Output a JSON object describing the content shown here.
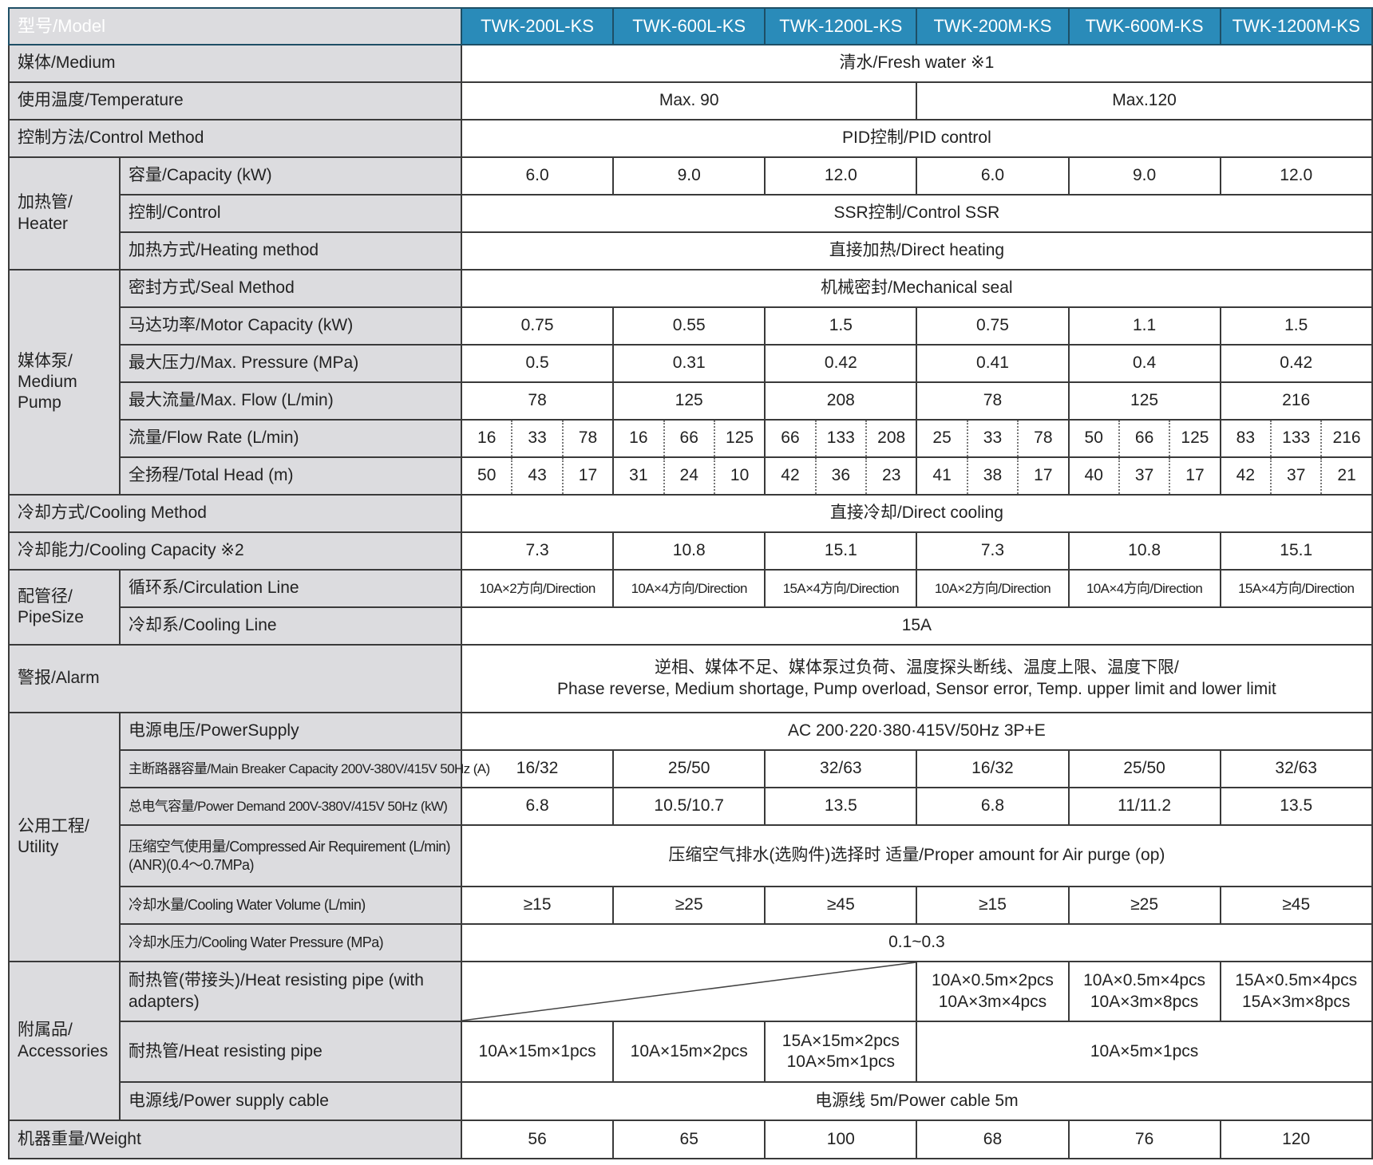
{
  "header": {
    "label": "型号/Model",
    "models": [
      "TWK-200L-KS",
      "TWK-600L-KS",
      "TWK-1200L-KS",
      "TWK-200M-KS",
      "TWK-600M-KS",
      "TWK-1200M-KS"
    ]
  },
  "colors": {
    "header_bg": "#2a8bb9",
    "label_bg": "#dcdcdf",
    "border": "#3a3a3a"
  },
  "rows": [
    {
      "id": "medium",
      "label": "媒体/Medium",
      "cells": [
        "清水/Fresh water ※1"
      ]
    },
    {
      "id": "temperature",
      "label": "使用温度/Temperature",
      "cells": [
        "Max. 90",
        "Max.120"
      ]
    },
    {
      "id": "control-method",
      "label": "控制方法/Control Method",
      "cells": [
        "PID控制/PID control"
      ]
    },
    {
      "id": "heater-capacity",
      "group": "加热管/ Heater",
      "label": "容量/Capacity (kW)",
      "cells": [
        "6.0",
        "9.0",
        "12.0",
        "6.0",
        "9.0",
        "12.0"
      ]
    },
    {
      "id": "heater-control",
      "label": "控制/Control",
      "cells": [
        "SSR控制/Control  SSR"
      ]
    },
    {
      "id": "heating-method",
      "label": "加热方式/Heating method",
      "cells": [
        "直接加热/Direct heating"
      ]
    },
    {
      "id": "seal-method",
      "group": "媒体泵/ Medium Pump",
      "label": "密封方式/Seal Method",
      "cells": [
        "机械密封/Mechanical seal"
      ]
    },
    {
      "id": "motor-capacity",
      "label": "马达功率/Motor Capacity  (kW)",
      "cells": [
        "0.75",
        "0.55",
        "1.5",
        "0.75",
        "1.1",
        "1.5"
      ]
    },
    {
      "id": "max-pressure",
      "label": "最大压力/Max. Pressure (MPa)",
      "cells": [
        "0.5",
        "0.31",
        "0.42",
        "0.41",
        "0.4",
        "0.42"
      ]
    },
    {
      "id": "max-flow",
      "label": "最大流量/Max. Flow (L/min)",
      "cells": [
        "78",
        "125",
        "208",
        "78",
        "125",
        "216"
      ]
    },
    {
      "id": "flow-rate",
      "label": "流量/Flow Rate (L/min)",
      "cells": [
        "16",
        "33",
        "78",
        "16",
        "66",
        "125",
        "66",
        "133",
        "208",
        "25",
        "33",
        "78",
        "50",
        "66",
        "125",
        "83",
        "133",
        "216"
      ]
    },
    {
      "id": "total-head",
      "label": "全扬程/Total Head  (m)",
      "cells": [
        "50",
        "43",
        "17",
        "31",
        "24",
        "10",
        "42",
        "36",
        "23",
        "41",
        "38",
        "17",
        "40",
        "37",
        "17",
        "42",
        "37",
        "21"
      ]
    },
    {
      "id": "cooling-method",
      "label": "冷却方式/Cooling Method",
      "cells": [
        "直接冷却/Direct cooling"
      ]
    },
    {
      "id": "cooling-capacity",
      "label": "冷却能力/Cooling Capacity ※2",
      "cells": [
        "7.3",
        "10.8",
        "15.1",
        "7.3",
        "10.8",
        "15.1"
      ]
    },
    {
      "id": "circulation-line",
      "group": "配管径/ PipeSize",
      "label": "循环系/Circulation Line",
      "cells": [
        "10A×2方向/Direction",
        "10A×4方向/Direction",
        "15A×4方向/Direction",
        "10A×2方向/Direction",
        "10A×4方向/Direction",
        "15A×4方向/Direction"
      ]
    },
    {
      "id": "cooling-line",
      "label": "冷却系/Cooling Line",
      "cells": [
        "15A"
      ]
    },
    {
      "id": "alarm",
      "label": "警报/Alarm",
      "cells": [
        "逆相、媒体不足、媒体泵过负荷、温度探头断线、温度上限、温度下限/ Phase reverse, Medium shortage, Pump overload, Sensor error, Temp. upper limit and lower limit"
      ]
    },
    {
      "id": "power-supply",
      "group": "公用工程/ Utility",
      "label": "电源电压/PowerSupply",
      "cells": [
        "AC 200·220·380·415V/50Hz 3P+E"
      ]
    },
    {
      "id": "main-breaker",
      "label": "主断路器容量/Main Breaker Capacity 200V-380V/415V 50Hz (A)",
      "cells": [
        "16/32",
        "25/50",
        "32/63",
        "16/32",
        "25/50",
        "32/63"
      ]
    },
    {
      "id": "power-demand",
      "label": "总电气容量/Power Demand 200V-380V/415V 50Hz  (kW)",
      "cells": [
        "6.8",
        "10.5/10.7",
        "13.5",
        "6.8",
        "11/11.2",
        "13.5"
      ]
    },
    {
      "id": "compressed-air",
      "label": "压缩空气使用量/Compressed Air Requirement (L/min)(ANR)(0.4～0.7MPa)",
      "cells": [
        "压缩空气排水(选购件)选择时  适量/Proper amount for Air purge (op)"
      ]
    },
    {
      "id": "cooling-water-volume",
      "label": "冷却水量/Cooling Water Volume (L/min)",
      "cells": [
        "≥15",
        "≥25",
        "≥45",
        "≥15",
        "≥25",
        "≥45"
      ]
    },
    {
      "id": "cooling-water-pressure",
      "label": "冷却水压力/Cooling Water Pressure (MPa)",
      "cells": [
        "0.1~0.3"
      ]
    },
    {
      "id": "heat-pipe-adapters",
      "group": "附属品/ Accessories",
      "label": "耐热管(带接头)/Heat resisting pipe (with adapters)",
      "cells": [
        "",
        "10A×0.5m×2pcs 10A×3m×4pcs",
        "10A×0.5m×4pcs 10A×3m×8pcs",
        "15A×0.5m×4pcs 15A×3m×8pcs"
      ]
    },
    {
      "id": "heat-pipe",
      "label": "耐热管/Heat resisting pipe",
      "cells": [
        "10A×15m×1pcs",
        "10A×15m×2pcs",
        "15A×15m×2pcs 10A×5m×1pcs",
        "10A×5m×1pcs"
      ]
    },
    {
      "id": "power-cable",
      "label": "电源线/Power supply cable",
      "cells": [
        "电源线 5m/Power cable 5m"
      ]
    },
    {
      "id": "weight",
      "label": "机器重量/Weight",
      "cells": [
        "56",
        "65",
        "100",
        "68",
        "76",
        "120"
      ]
    }
  ]
}
